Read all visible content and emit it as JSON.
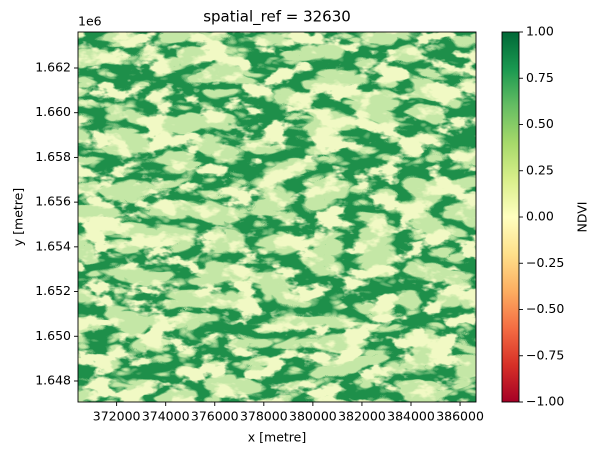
{
  "chart_data": {
    "type": "raster",
    "title": "spatial_ref = 32630",
    "x_label": "x [metre]",
    "y_label": "y [metre]",
    "y_offset_label": "1e6",
    "colorbar_label": "NDVI",
    "colormap": "RdYlGn",
    "xlim": [
      370425,
      386650
    ],
    "ylim": [
      1.64706,
      1.66361
    ],
    "xticks": [
      372000,
      374000,
      376000,
      378000,
      380000,
      382000,
      384000,
      386000
    ],
    "yticks": [
      1.648,
      {
        "value": 1.65,
        "label": "1.650"
      },
      1.652,
      1.654,
      1.656,
      1.658,
      {
        "value": 1.66,
        "label": "1.660"
      },
      1.662
    ],
    "clim": [
      -1,
      1
    ],
    "cticks": [
      {
        "value": -1,
        "label": "−1.00"
      },
      {
        "value": -0.75,
        "label": "−0.75"
      },
      {
        "value": -0.5,
        "label": "−0.50"
      },
      {
        "value": -0.25,
        "label": "−0.25"
      },
      {
        "value": 0,
        "label": "0.00"
      },
      {
        "value": 0.25,
        "label": "0.25"
      },
      {
        "value": 0.5,
        "label": "0.50"
      },
      {
        "value": 0.75,
        "label": "0.75"
      },
      {
        "value": 1,
        "label": "1.00"
      }
    ]
  }
}
